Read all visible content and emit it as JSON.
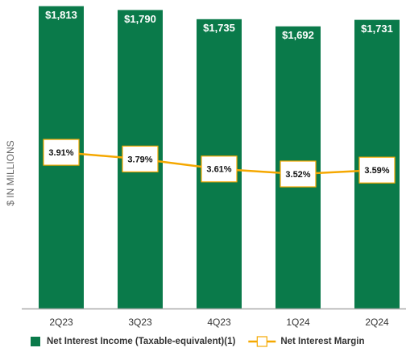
{
  "chart_data": {
    "type": "bar",
    "y_label": "$ IN MILLIONS",
    "categories": [
      "2Q23",
      "3Q23",
      "4Q23",
      "1Q24",
      "2Q24"
    ],
    "series": [
      {
        "name": "Net Interest Income (Taxable-equivalent)(1)",
        "color": "#0a7a4a",
        "values": [
          1813,
          1790,
          1735,
          1692,
          1731
        ],
        "value_labels": [
          "$1,813",
          "$1,790",
          "$1,735",
          "$1,692",
          "$1,731"
        ]
      },
      {
        "name": "Net Interest Margin",
        "type": "line",
        "axis": "y2",
        "color": "#f5a800",
        "values": [
          3.91,
          3.79,
          3.61,
          3.52,
          3.59
        ],
        "value_labels": [
          "3.91%",
          "3.79%",
          "3.61%",
          "3.52%",
          "3.59%"
        ]
      }
    ],
    "ylim": [
      0,
      1850
    ],
    "y2lim": [
      1.1,
      6.65
    ],
    "legend": "bottom"
  }
}
